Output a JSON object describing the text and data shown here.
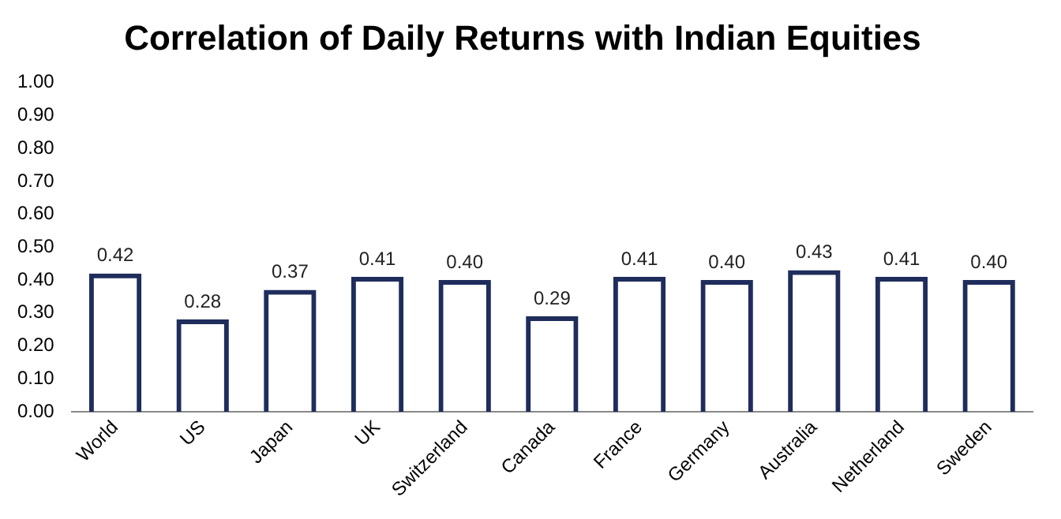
{
  "chart_data": {
    "type": "bar",
    "title": "Correlation of Daily Returns with Indian Equities",
    "categories": [
      "World",
      "US",
      "Japan",
      "UK",
      "Switzerland",
      "Canada",
      "France",
      "Germany",
      "Australia",
      "Netherland",
      "Sweden"
    ],
    "values": [
      0.42,
      0.28,
      0.37,
      0.41,
      0.4,
      0.29,
      0.41,
      0.4,
      0.43,
      0.41,
      0.4
    ],
    "value_labels": [
      "0.42",
      "0.28",
      "0.37",
      "0.41",
      "0.40",
      "0.29",
      "0.41",
      "0.40",
      "0.43",
      "0.41",
      "0.40"
    ],
    "color": "#1f2d5c",
    "ylim": [
      0,
      1
    ],
    "yticks": [
      {
        "value": 0,
        "label": "0.00"
      },
      {
        "value": 0.1,
        "label": "0.10"
      },
      {
        "value": 0.2,
        "label": "0.20"
      },
      {
        "value": 0.3,
        "label": "0.30"
      },
      {
        "value": 0.4,
        "label": "0.40"
      },
      {
        "value": 0.5,
        "label": "0.50"
      },
      {
        "value": 0.6,
        "label": "0.60"
      },
      {
        "value": 0.7,
        "label": "0.70"
      },
      {
        "value": 0.8,
        "label": "0.80"
      },
      {
        "value": 0.9,
        "label": "0.90"
      },
      {
        "value": 1,
        "label": "1.00"
      }
    ],
    "grid": false,
    "legend": false
  }
}
